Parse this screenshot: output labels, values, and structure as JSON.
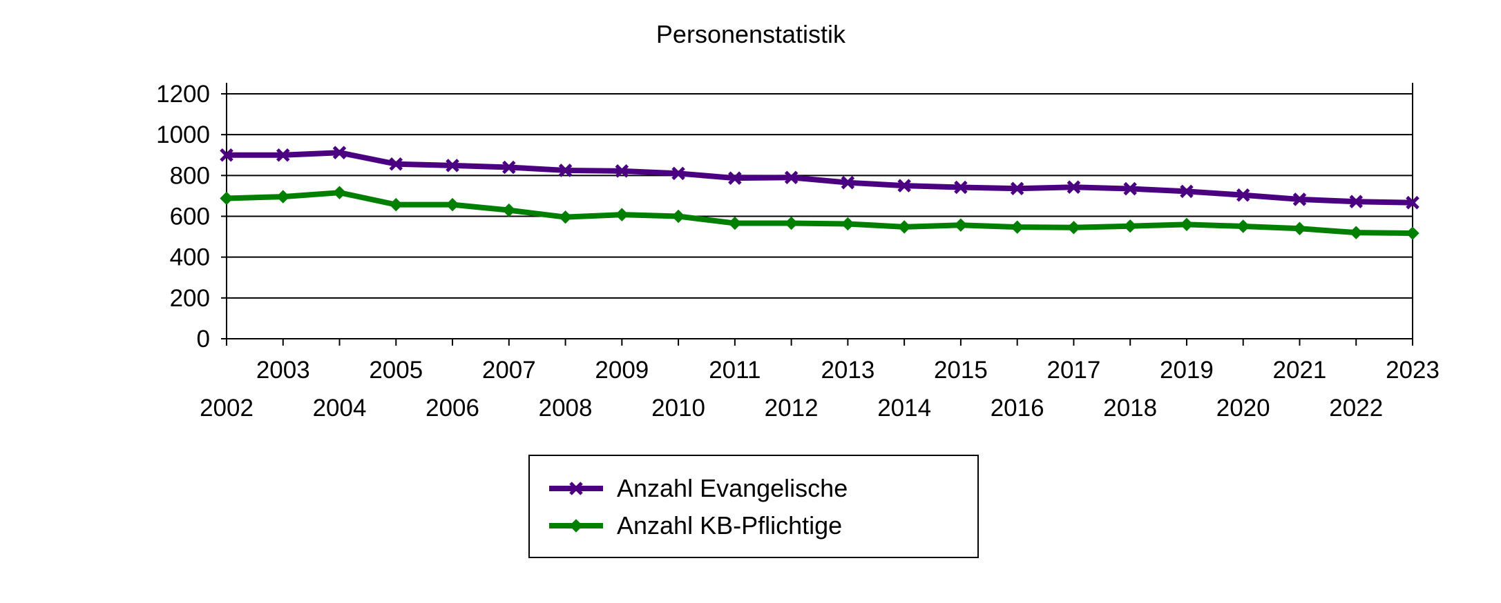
{
  "chart_data": {
    "type": "line",
    "title": "Personenstatistik",
    "xlabel": "",
    "ylabel": "",
    "ylim": [
      0,
      1200
    ],
    "yticks": [
      0,
      200,
      400,
      600,
      800,
      1000,
      1200
    ],
    "grid": true,
    "legend_position": "bottom-center",
    "categories": [
      "2002",
      "2003",
      "2004",
      "2005",
      "2006",
      "2007",
      "2008",
      "2009",
      "2010",
      "2011",
      "2012",
      "2013",
      "2014",
      "2015",
      "2016",
      "2017",
      "2018",
      "2019",
      "2020",
      "2021",
      "2022",
      "2023"
    ],
    "series": [
      {
        "name": "Anzahl Evangelische",
        "color": "#4b0082",
        "marker": "x",
        "values": [
          900,
          900,
          912,
          856,
          849,
          840,
          825,
          822,
          810,
          787,
          790,
          765,
          750,
          742,
          736,
          743,
          735,
          722,
          704,
          683,
          672,
          667
        ]
      },
      {
        "name": "Anzahl KB-Pflichtige",
        "color": "#007f00",
        "marker": "diamond",
        "values": [
          688,
          696,
          716,
          657,
          657,
          630,
          596,
          608,
          600,
          566,
          566,
          563,
          548,
          557,
          547,
          545,
          552,
          560,
          551,
          540,
          520,
          517
        ]
      }
    ]
  }
}
